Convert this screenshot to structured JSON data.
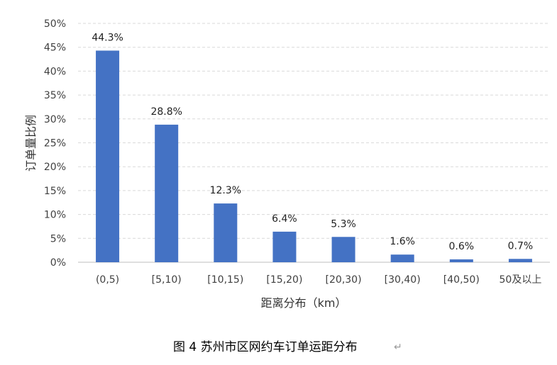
{
  "chart_data": {
    "type": "bar",
    "categories": [
      "(0,5)",
      "[5,10)",
      "[10,15)",
      "[15,20)",
      "[20,30)",
      "[30,40)",
      "[40,50)",
      "50及以上"
    ],
    "values": [
      44.3,
      28.8,
      12.3,
      6.4,
      5.3,
      1.6,
      0.6,
      0.7
    ],
    "data_labels": [
      "44.3%",
      "28.8%",
      "12.3%",
      "6.4%",
      "5.3%",
      "1.6%",
      "0.6%",
      "0.7%"
    ],
    "y_ticks": [
      "0%",
      "5%",
      "10%",
      "15%",
      "20%",
      "25%",
      "30%",
      "35%",
      "40%",
      "45%",
      "50%"
    ],
    "ylim": [
      0,
      50
    ],
    "xlabel": "距离分布（km）",
    "ylabel": "订单量比例",
    "grid": true,
    "bar_color": "#4472C4",
    "grid_color": "#D9D9D9"
  },
  "caption": {
    "text": "图 4 苏州市区网约车订单运距分布",
    "mark": "↵"
  }
}
